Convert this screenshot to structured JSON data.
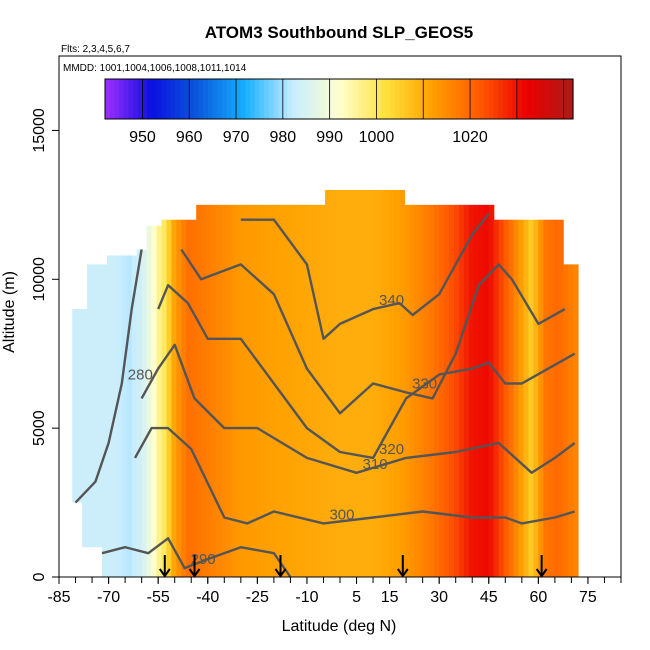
{
  "chart_data": {
    "type": "heatmap",
    "title": "ATOM3 Southbound SLP_GEOS5",
    "subtitle_flights": "Flts: 2,3,4,5,6,7",
    "subtitle_dates": "MMDD: 1001,1004,1006,1008,1011,1014",
    "xlabel": "Latitude (deg N)",
    "ylabel": "Altitude (m)",
    "xlim": [
      -85,
      85
    ],
    "ylim": [
      0,
      17500
    ],
    "x_ticks": [
      -85,
      -70,
      -55,
      -40,
      -25,
      -10,
      5,
      15,
      30,
      45,
      60,
      75
    ],
    "y_ticks": [
      0,
      5000,
      10000,
      15000
    ],
    "colorbar": {
      "range": [
        942,
        1042
      ],
      "ticks": [
        950,
        960,
        970,
        980,
        990,
        1000,
        1020
      ],
      "colors": [
        "#9f2fff",
        "#0b0fe0",
        "#0a5bdc",
        "#17b0ff",
        "#c6ecff",
        "#ffffd0",
        "#ffe23c",
        "#ffa000",
        "#ff5a00",
        "#ec0000",
        "#ad1a1a"
      ]
    },
    "slp_profile": [
      {
        "lat": -68,
        "slp": 983
      },
      {
        "lat": -64,
        "slp": 981
      },
      {
        "lat": -60,
        "slp": 984
      },
      {
        "lat": -57,
        "slp": 990
      },
      {
        "lat": -55,
        "slp": 996
      },
      {
        "lat": -53,
        "slp": 1000
      },
      {
        "lat": -50,
        "slp": 1012
      },
      {
        "lat": -46,
        "slp": 1019
      },
      {
        "lat": -40,
        "slp": 1017
      },
      {
        "lat": -30,
        "slp": 1013
      },
      {
        "lat": -20,
        "slp": 1012
      },
      {
        "lat": -10,
        "slp": 1011
      },
      {
        "lat": 0,
        "slp": 1010
      },
      {
        "lat": 10,
        "slp": 1010
      },
      {
        "lat": 20,
        "slp": 1013
      },
      {
        "lat": 28,
        "slp": 1018
      },
      {
        "lat": 35,
        "slp": 1024
      },
      {
        "lat": 40,
        "slp": 1030
      },
      {
        "lat": 45,
        "slp": 1031
      },
      {
        "lat": 50,
        "slp": 1022
      },
      {
        "lat": 55,
        "slp": 1012
      },
      {
        "lat": 58,
        "slp": 1005
      },
      {
        "lat": 62,
        "slp": 1018
      },
      {
        "lat": 66,
        "slp": 1020
      },
      {
        "lat": 71,
        "slp": 1016
      }
    ],
    "theta_contours": [
      {
        "label": "280",
        "points": [
          [
            -80,
            2500
          ],
          [
            -74,
            3200
          ],
          [
            -70,
            4500
          ],
          [
            -66,
            6500
          ],
          [
            -63,
            9000
          ],
          [
            -60,
            11000
          ]
        ]
      },
      {
        "label": "290",
        "points": [
          [
            -72,
            800
          ],
          [
            -65,
            1000
          ],
          [
            -58,
            800
          ],
          [
            -52,
            1300
          ],
          [
            -47,
            300
          ],
          [
            -40,
            600
          ],
          [
            -30,
            1000
          ],
          [
            -20,
            800
          ],
          [
            -15,
            0
          ]
        ]
      },
      {
        "label": "300",
        "points": [
          [
            -62,
            4000
          ],
          [
            -57,
            5000
          ],
          [
            -52,
            5000
          ],
          [
            -45,
            4300
          ],
          [
            -35,
            2000
          ],
          [
            -28,
            1800
          ],
          [
            -20,
            2200
          ],
          [
            -5,
            1800
          ],
          [
            10,
            2000
          ],
          [
            25,
            2200
          ],
          [
            40,
            2000
          ],
          [
            50,
            2000
          ],
          [
            55,
            1800
          ],
          [
            65,
            2000
          ],
          [
            71,
            2200
          ]
        ]
      },
      {
        "label": "310",
        "points": [
          [
            -60,
            6000
          ],
          [
            -55,
            7000
          ],
          [
            -50,
            7800
          ],
          [
            -44,
            6000
          ],
          [
            -35,
            5000
          ],
          [
            -25,
            5000
          ],
          [
            -10,
            4000
          ],
          [
            5,
            3500
          ],
          [
            20,
            4000
          ],
          [
            35,
            4200
          ],
          [
            48,
            4500
          ],
          [
            58,
            3500
          ],
          [
            65,
            4000
          ],
          [
            71,
            4500
          ]
        ]
      },
      {
        "label": "320",
        "points": [
          [
            -55,
            9000
          ],
          [
            -52,
            9800
          ],
          [
            -46,
            9200
          ],
          [
            -40,
            8000
          ],
          [
            -30,
            8000
          ],
          [
            -20,
            6500
          ],
          [
            -10,
            5000
          ],
          [
            0,
            4200
          ],
          [
            10,
            4000
          ],
          [
            20,
            6000
          ],
          [
            30,
            6800
          ],
          [
            40,
            7000
          ],
          [
            45,
            7200
          ],
          [
            50,
            6500
          ],
          [
            55,
            6500
          ],
          [
            63,
            7000
          ],
          [
            71,
            7500
          ]
        ]
      },
      {
        "label": "330",
        "points": [
          [
            -48,
            11000
          ],
          [
            -42,
            10000
          ],
          [
            -30,
            10500
          ],
          [
            -20,
            9500
          ],
          [
            -10,
            7000
          ],
          [
            0,
            5500
          ],
          [
            10,
            6500
          ],
          [
            20,
            6200
          ],
          [
            28,
            6000
          ],
          [
            35,
            7500
          ],
          [
            42,
            9800
          ],
          [
            48,
            10500
          ],
          [
            52,
            10000
          ],
          [
            60,
            8500
          ],
          [
            68,
            9000
          ]
        ]
      },
      {
        "label": "340",
        "points": [
          [
            -30,
            12000
          ],
          [
            -20,
            12000
          ],
          [
            -10,
            10500
          ],
          [
            -5,
            8000
          ],
          [
            0,
            8500
          ],
          [
            10,
            9000
          ],
          [
            18,
            9200
          ],
          [
            22,
            8800
          ],
          [
            30,
            9500
          ],
          [
            40,
            11500
          ],
          [
            45,
            12200
          ]
        ]
      }
    ],
    "arrow_markers_lat": [
      -53,
      -44,
      -18,
      19,
      61
    ]
  }
}
